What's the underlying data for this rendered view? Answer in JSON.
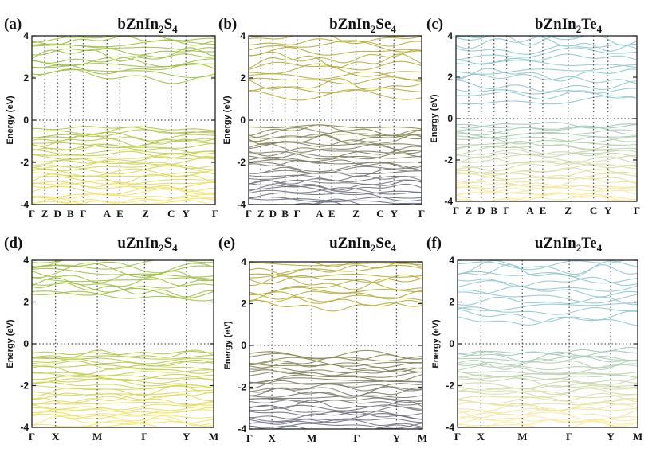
{
  "figure": {
    "panels": [
      {
        "label": "(a)",
        "title_parts": [
          [
            "bZnIn",
            false
          ],
          [
            "2",
            true
          ],
          [
            "S",
            false
          ],
          [
            "4",
            true
          ]
        ],
        "title": "bZnIn2S4"
      },
      {
        "label": "(b)",
        "title_parts": [
          [
            "bZnIn",
            false
          ],
          [
            "2",
            true
          ],
          [
            "Se",
            false
          ],
          [
            "4",
            true
          ]
        ],
        "title": "bZnIn2Se4"
      },
      {
        "label": "(c)",
        "title_parts": [
          [
            "bZnIn",
            false
          ],
          [
            "2",
            true
          ],
          [
            "Te",
            false
          ],
          [
            "4",
            true
          ]
        ],
        "title": "bZnIn2Te4"
      },
      {
        "label": "(d)",
        "title_parts": [
          [
            "uZnIn",
            false
          ],
          [
            "2",
            true
          ],
          [
            "S",
            false
          ],
          [
            "4",
            true
          ]
        ],
        "title": "uZnIn2S4"
      },
      {
        "label": "(e)",
        "title_parts": [
          [
            "uZnIn",
            false
          ],
          [
            "2",
            true
          ],
          [
            "Se",
            false
          ],
          [
            "4",
            true
          ]
        ],
        "title": "uZnIn2Se4"
      },
      {
        "label": "(f)",
        "title_parts": [
          [
            "uZnIn",
            false
          ],
          [
            "2",
            true
          ],
          [
            "Te",
            false
          ],
          [
            "4",
            true
          ]
        ],
        "title": "uZnIn2Te4"
      }
    ]
  },
  "chart_data": [
    {
      "type": "line",
      "title": "bZnIn2S4",
      "ylabel": "Energy (eV)",
      "ylim": [
        -4,
        4
      ],
      "yticks": [
        -4,
        -2,
        0,
        2,
        4
      ],
      "kpoints": [
        "Γ",
        "Z",
        "D",
        "B",
        "Γ",
        "A",
        "E",
        "Z",
        "C",
        "Y",
        "Γ"
      ],
      "kpos": [
        0,
        0.07,
        0.14,
        0.21,
        0.28,
        0.41,
        0.48,
        0.62,
        0.76,
        0.84,
        1.0
      ],
      "fermi": 0,
      "vbm": -0.25,
      "cbm": 1.8,
      "colors": {
        "cond": "#9cc13d",
        "val_top": "#a9c43d",
        "val_bottom": "#f6e46a"
      }
    },
    {
      "type": "line",
      "title": "bZnIn2Se4",
      "ylabel": "Energy (eV)",
      "ylim": [
        -4,
        4
      ],
      "yticks": [
        -4,
        -2,
        0,
        2,
        4
      ],
      "kpoints": [
        "Γ",
        "Z",
        "D",
        "B",
        "Γ",
        "A",
        "E",
        "Z",
        "C",
        "Y",
        "Γ"
      ],
      "kpos": [
        0,
        0.07,
        0.14,
        0.21,
        0.28,
        0.41,
        0.48,
        0.62,
        0.76,
        0.84,
        1.0
      ],
      "fermi": 0,
      "vbm": -0.2,
      "cbm": 0.9,
      "colors": {
        "cond": "#b6ad34",
        "val_top": "#8a8a48",
        "val_bottom": "#707088"
      }
    },
    {
      "type": "line",
      "title": "bZnIn2Te4",
      "ylabel": "Energy (eV)",
      "ylim": [
        -4,
        4
      ],
      "yticks": [
        -4,
        -2,
        0,
        2,
        4
      ],
      "kpoints": [
        "Γ",
        "Z",
        "D",
        "B",
        "Γ",
        "A",
        "E",
        "Z",
        "C",
        "Y",
        "Γ"
      ],
      "kpos": [
        0,
        0.07,
        0.14,
        0.21,
        0.28,
        0.41,
        0.48,
        0.62,
        0.76,
        0.84,
        1.0
      ],
      "fermi": 0,
      "vbm": -0.15,
      "cbm": 0.6,
      "colors": {
        "cond": "#8fc8cf",
        "val_top": "#99c7b8",
        "val_bottom": "#fbe99c"
      }
    },
    {
      "type": "line",
      "title": "uZnIn2S4",
      "ylabel": "Energy (eV)",
      "ylim": [
        -4,
        4
      ],
      "yticks": [
        -4,
        -2,
        0,
        2,
        4
      ],
      "kpoints": [
        "Γ",
        "X",
        "M",
        "Γ",
        "Y",
        "M"
      ],
      "kpos": [
        0,
        0.13,
        0.36,
        0.62,
        0.85,
        1.0
      ],
      "fermi": 0,
      "vbm": -0.25,
      "cbm": 2.0,
      "colors": {
        "cond": "#9cc13d",
        "val_top": "#a9c43d",
        "val_bottom": "#f6e46a"
      }
    },
    {
      "type": "line",
      "title": "uZnIn2Se4",
      "ylabel": "Energy (eV)",
      "ylim": [
        -4,
        4
      ],
      "yticks": [
        -4,
        -2,
        0,
        2,
        4
      ],
      "kpoints": [
        "Γ",
        "X",
        "M",
        "Γ",
        "Y",
        "M"
      ],
      "kpos": [
        0,
        0.13,
        0.36,
        0.62,
        0.85,
        1.0
      ],
      "fermi": 0,
      "vbm": -0.3,
      "cbm": 1.6,
      "colors": {
        "cond": "#b6ad34",
        "val_top": "#8a8a48",
        "val_bottom": "#707088"
      }
    },
    {
      "type": "line",
      "title": "uZnIn2Te4",
      "ylabel": "Energy (eV)",
      "ylim": [
        -4,
        4
      ],
      "yticks": [
        -4,
        -2,
        0,
        2,
        4
      ],
      "kpoints": [
        "Γ",
        "X",
        "M",
        "Γ",
        "Y",
        "M"
      ],
      "kpos": [
        0,
        0.13,
        0.36,
        0.62,
        0.85,
        1.0
      ],
      "fermi": 0,
      "vbm": -0.2,
      "cbm": 0.8,
      "colors": {
        "cond": "#8fc8cf",
        "val_top": "#99c7b8",
        "val_bottom": "#fbe99c"
      }
    }
  ]
}
